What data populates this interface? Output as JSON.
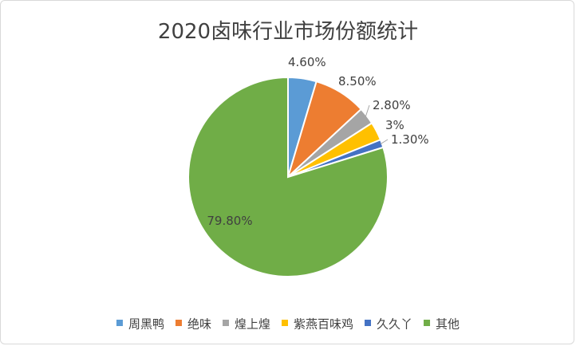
{
  "chart_data": {
    "type": "pie",
    "title": "2020卤味行业市场份额统计",
    "slices": [
      {
        "name": "周黑鸭",
        "value": 4.6,
        "label": "4.60%",
        "color": "#5b9bd5"
      },
      {
        "name": "绝味",
        "value": 8.5,
        "label": "8.50%",
        "color": "#ed7d31"
      },
      {
        "name": "煌上煌",
        "value": 2.8,
        "label": "2.80%",
        "color": "#a5a5a5"
      },
      {
        "name": "紫燕百味鸡",
        "value": 3.0,
        "label": "3%",
        "color": "#ffc000"
      },
      {
        "name": "久久丫",
        "value": 1.3,
        "label": "1.30%",
        "color": "#4472c4"
      },
      {
        "name": "其他",
        "value": 79.8,
        "label": "79.80%",
        "color": "#70ad47"
      }
    ],
    "start_angle": "12 o'clock",
    "direction": "clockwise",
    "legend_position": "bottom"
  }
}
